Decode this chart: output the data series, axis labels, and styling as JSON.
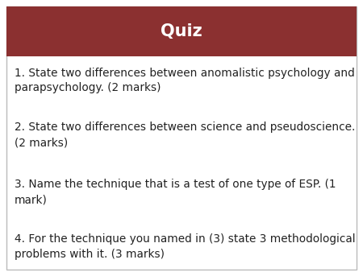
{
  "title": "Quiz",
  "title_bg_color": "#8B3030",
  "title_text_color": "#FFFFFF",
  "body_bg_color": "#FFFFFF",
  "border_color": "#BBBBBB",
  "text_color": "#222222",
  "questions": [
    "1. State two differences between anomalistic psychology and\nparapsychology. (2 marks)",
    "2. State two differences between science and pseudoscience.\n(2 marks)",
    "3. Name the technique that is a test of one type of ESP. (1\nmark)",
    "4. For the technique you named in (3) state 3 methodological\nproblems with it. (3 marks)"
  ],
  "title_fontsize": 15,
  "body_fontsize": 9.8,
  "fig_width": 4.5,
  "fig_height": 3.38,
  "dpi": 100
}
